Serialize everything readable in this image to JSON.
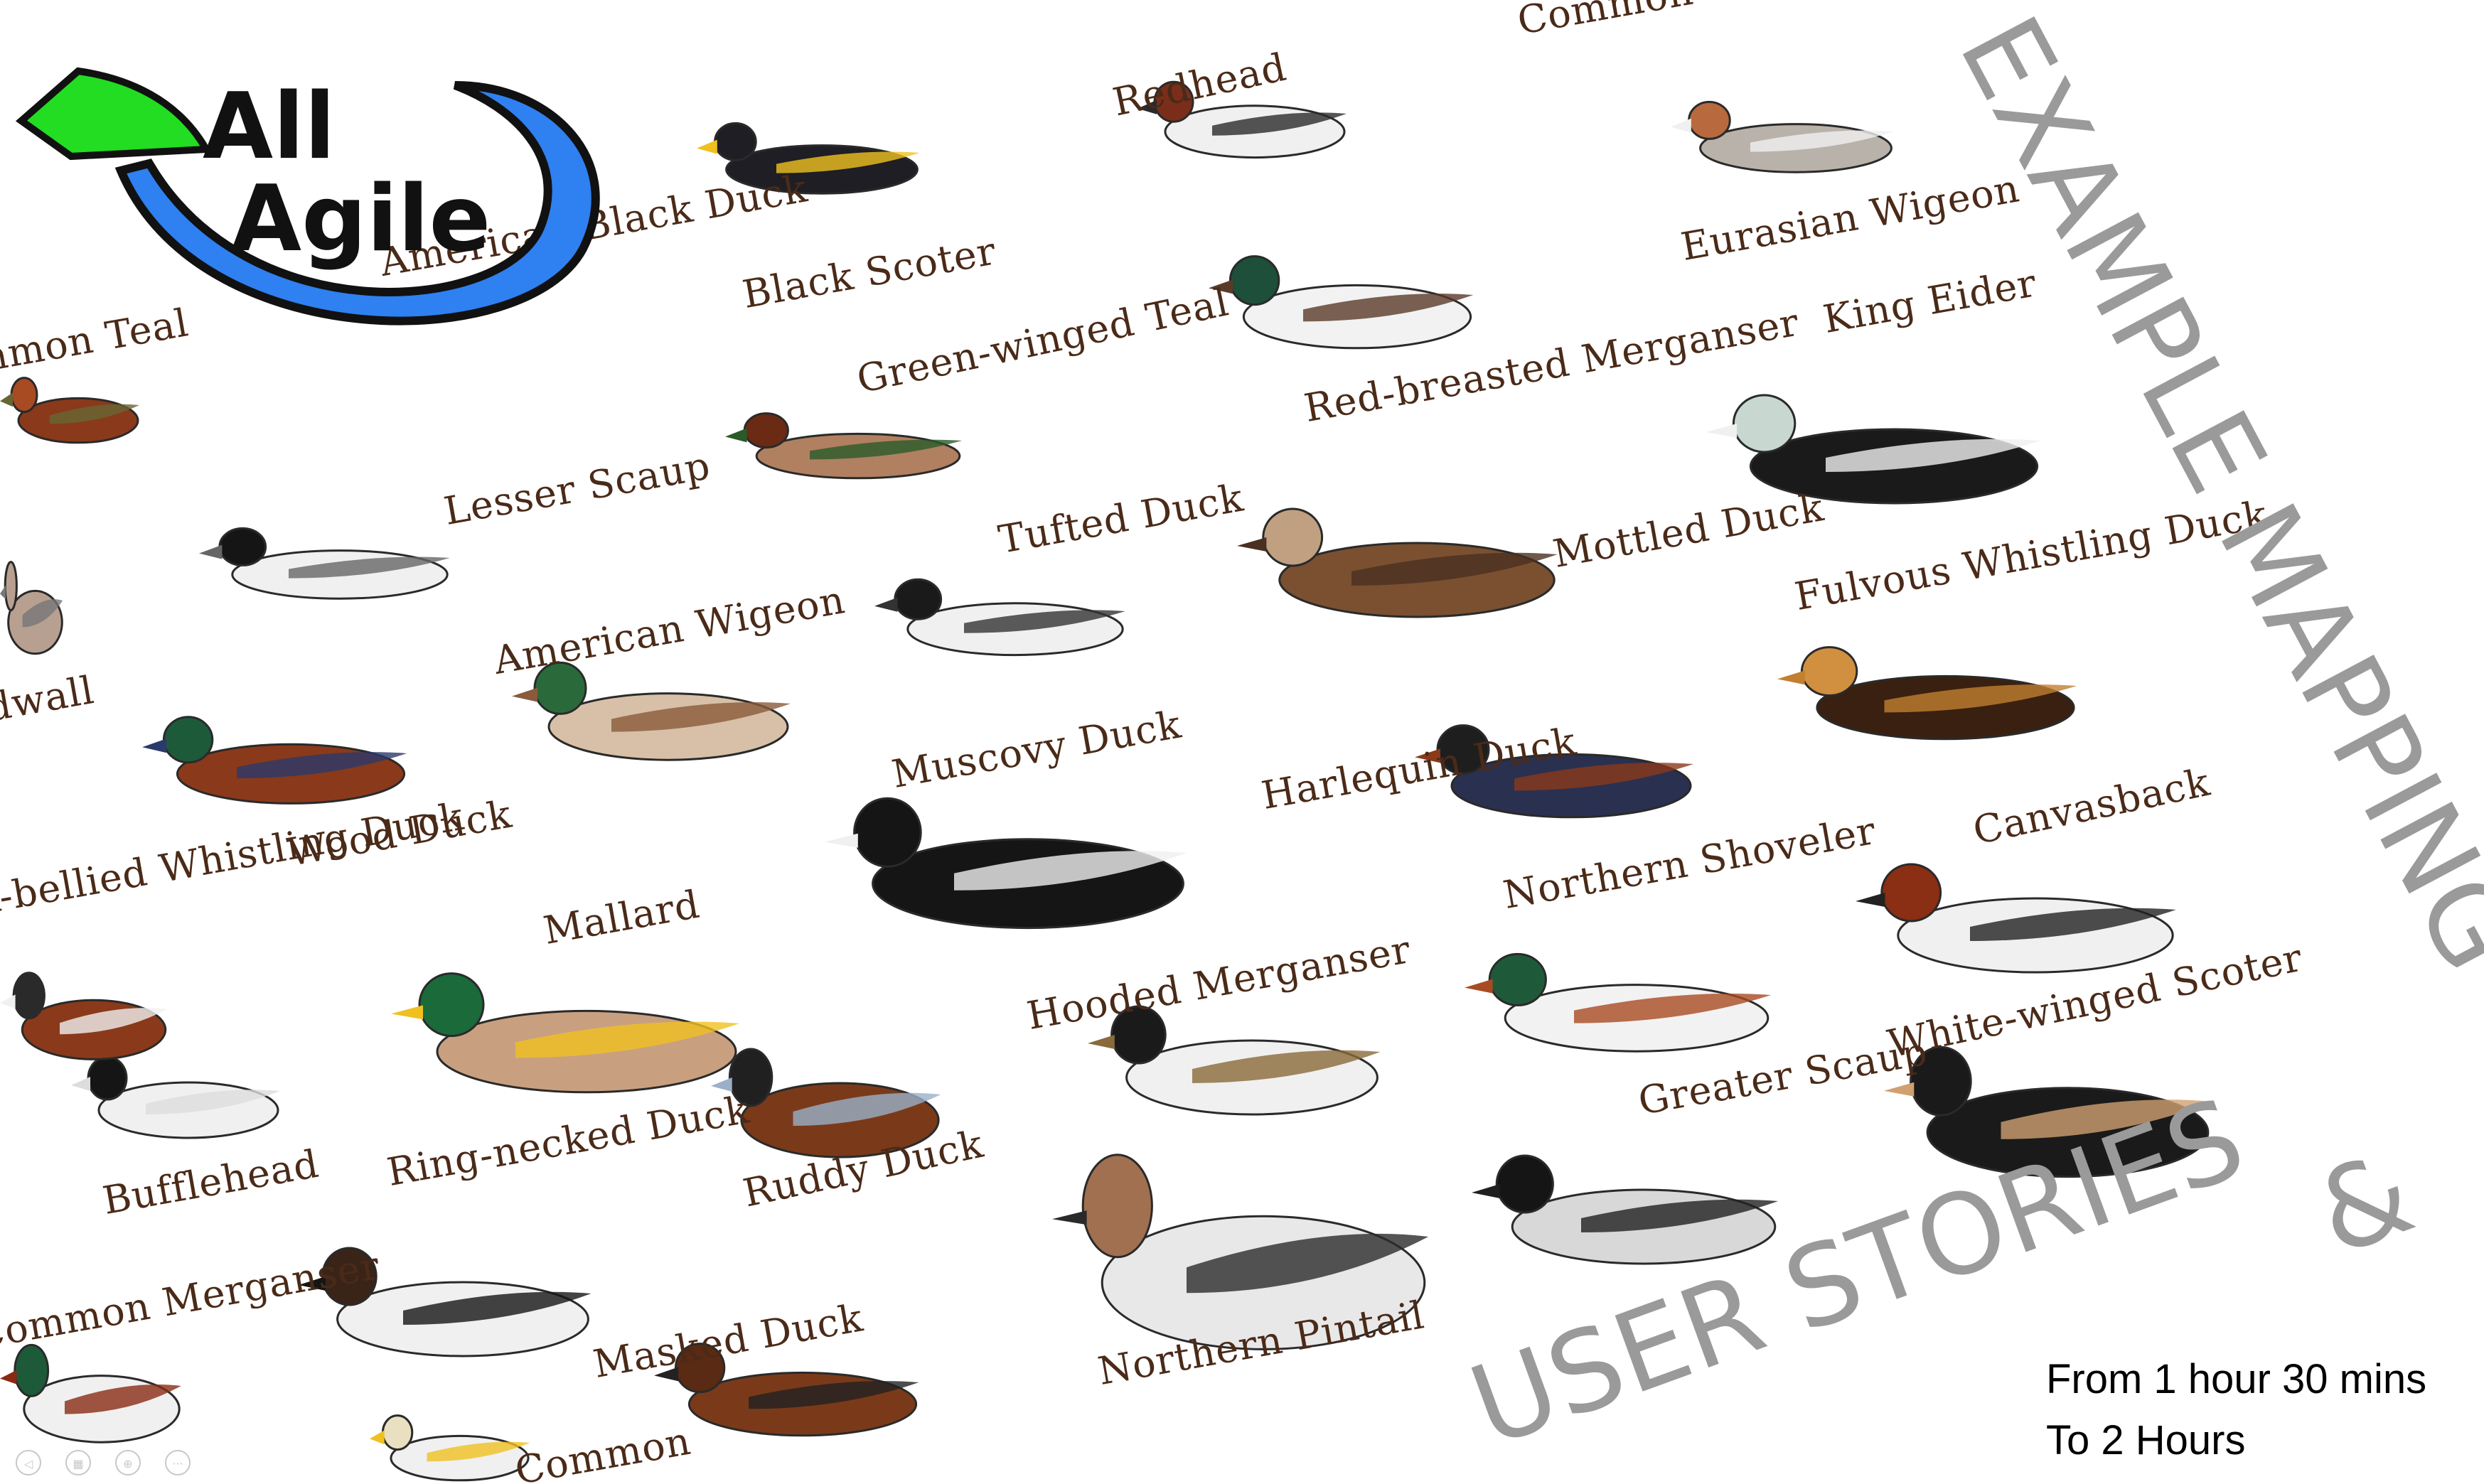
{
  "slide": {
    "logo": {
      "line1": "All",
      "line2": "Agile"
    },
    "title": {
      "line1": "EXAMPLE MAPPING",
      "ampersand": "&",
      "line2": "USER STORIES"
    },
    "duration": {
      "line1": "From 1 hour 30 mins",
      "line2": "To 2 Hours"
    },
    "duck_labels": [
      "Common Goldeneye",
      "Redhead",
      "Black Scoter",
      "Eurasian Wigeon",
      "Green-winged Teal",
      "Red-breasted Merganser",
      "King Eider",
      "Lesser Scaup",
      "Tufted Duck",
      "Mottled Duck",
      "Fulvous Whistling Duck",
      "American Wigeon",
      "Muscovy Duck",
      "Harlequin Duck",
      "Wood Duck",
      "Canvasback",
      "Mallard",
      "Northern Shoveler",
      "Hooded Merganser",
      "White-winged Scoter",
      "Ring-necked Duck",
      "Bufflehead",
      "Greater Scaup",
      "Ruddy Duck",
      "Masked Duck",
      "Northern Pintail",
      "Common",
      "Black-bellied Whistling Duck",
      "Common Merganser",
      "Common Teal",
      "Gadwall",
      "American Black Duck"
    ],
    "colors": {
      "logo_blue": "#2f80f0",
      "logo_green": "#22dd22",
      "title_gray": "#9a9a9a",
      "label_brown": "#4a2a18"
    }
  },
  "controls": [
    {
      "icon": "prev-icon",
      "glyph": "◁"
    },
    {
      "icon": "slides-icon",
      "glyph": "▦"
    },
    {
      "icon": "zoom-icon",
      "glyph": "⊕"
    },
    {
      "icon": "more-icon",
      "glyph": "···"
    }
  ]
}
